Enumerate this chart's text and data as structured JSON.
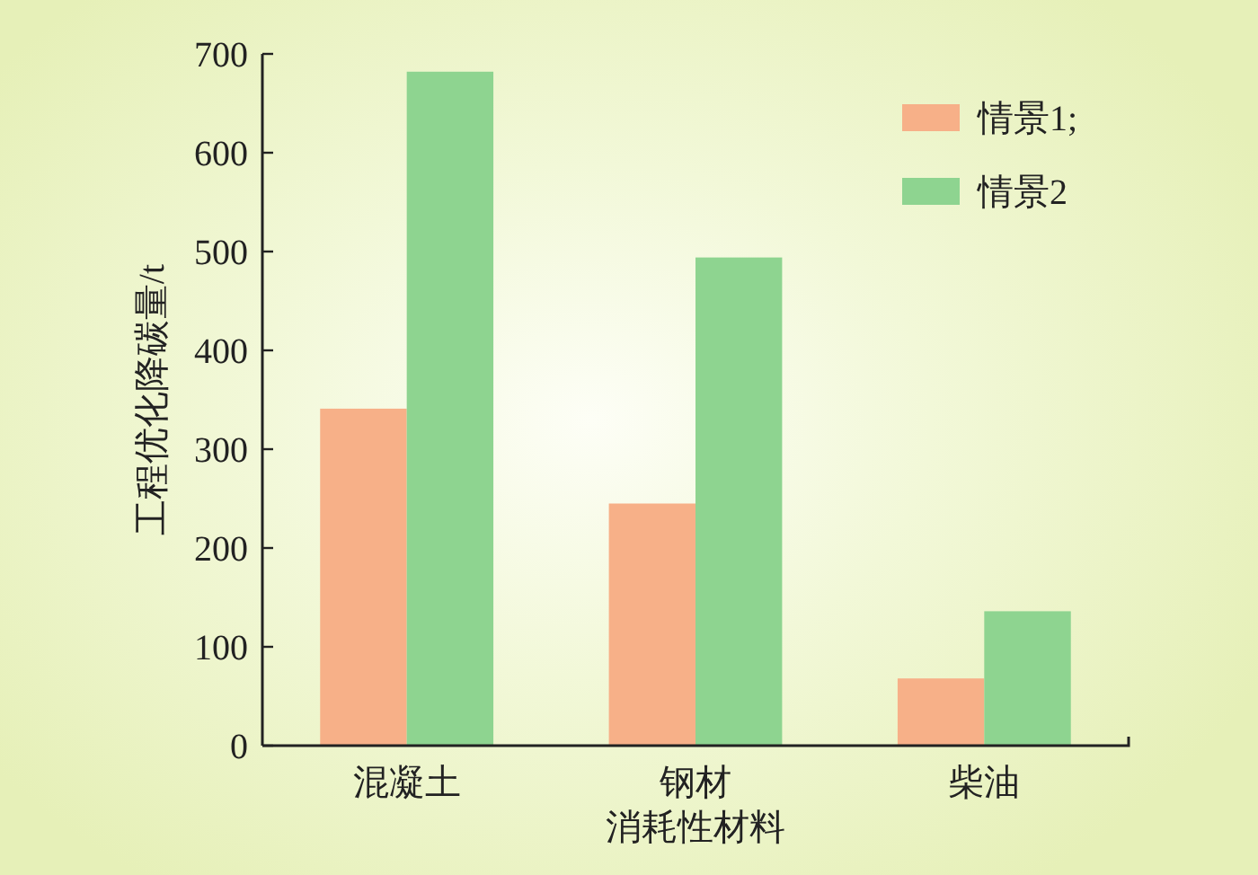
{
  "chart_data": {
    "type": "bar",
    "xlabel": "消耗性材料",
    "ylabel": "工程优化降碳量/t",
    "categories": [
      "混凝土",
      "钢材",
      "柴油"
    ],
    "series": [
      {
        "name": "情景1;",
        "color": "#f7b088",
        "values": [
          341,
          245,
          68
        ]
      },
      {
        "name": "情景2",
        "color": "#8ed490",
        "values": [
          682,
          494,
          136
        ]
      }
    ],
    "ylim": [
      0,
      700
    ],
    "yticks": [
      0,
      100,
      200,
      300,
      400,
      500,
      600,
      700
    ],
    "legend": "top right"
  }
}
